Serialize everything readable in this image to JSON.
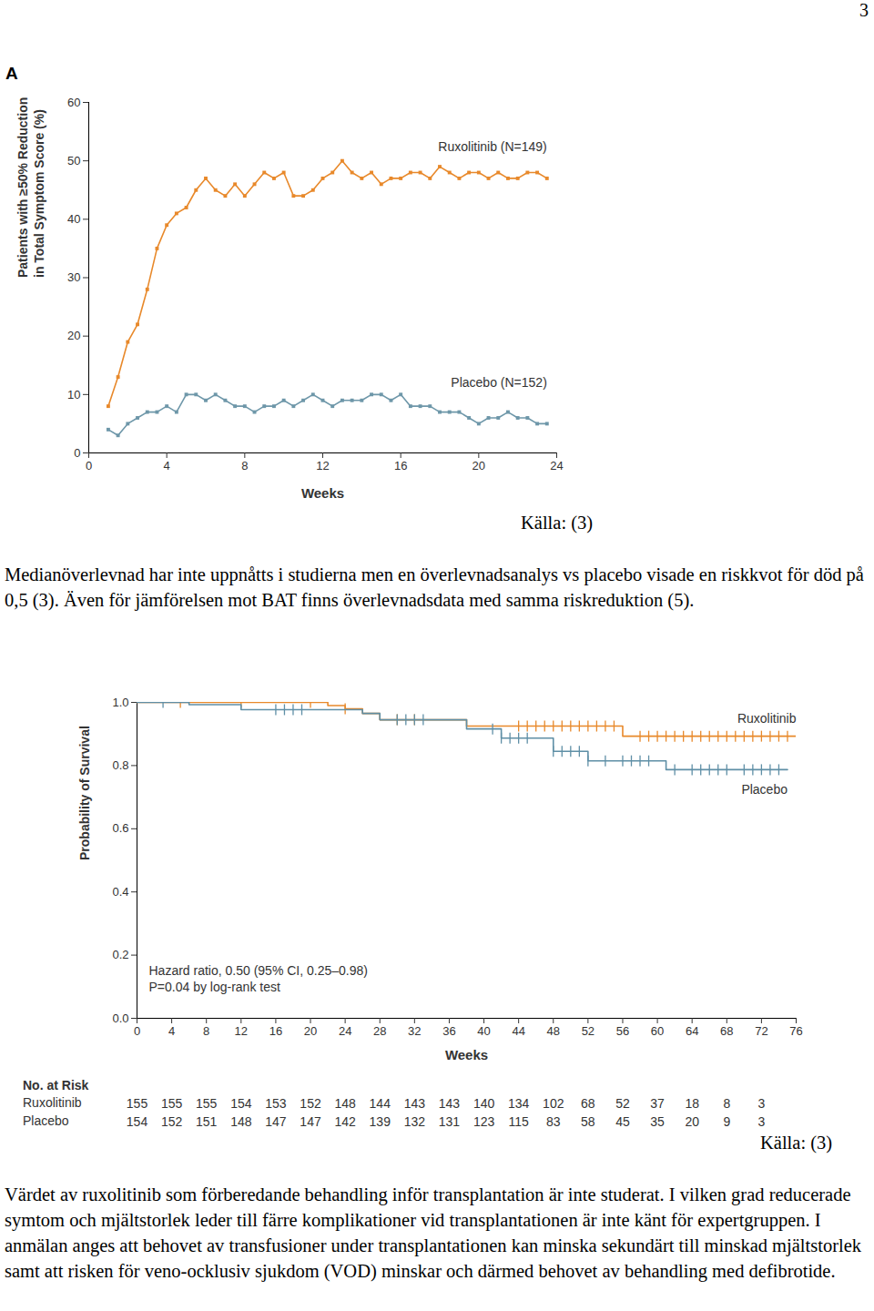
{
  "page_number": "3",
  "panel_label": "A",
  "chart_data": [
    {
      "type": "line",
      "marker": "square",
      "x_label": "Weeks",
      "y_label": [
        "Patients with ≥50% Reduction",
        "in Total Symptom Score (%)"
      ],
      "xlim": [
        0,
        24
      ],
      "xticks": [
        0,
        4,
        8,
        12,
        16,
        20,
        24
      ],
      "ylim": [
        0,
        60
      ],
      "yticks": [
        0,
        10,
        20,
        30,
        40,
        50,
        60
      ],
      "x": [
        1,
        1.5,
        2,
        2.5,
        3,
        3.5,
        4,
        4.5,
        5,
        5.5,
        6,
        6.5,
        7,
        7.5,
        8,
        8.5,
        9,
        9.5,
        10,
        10.5,
        11,
        11.5,
        12,
        12.5,
        13,
        13.5,
        14,
        14.5,
        15,
        15.5,
        16,
        16.5,
        17,
        17.5,
        18,
        18.5,
        19,
        19.5,
        20,
        20.5,
        21,
        21.5,
        22,
        22.5,
        23,
        23.5
      ],
      "series": [
        {
          "name": "Ruxolitinib (N=149)",
          "color": "#e8892b",
          "values": [
            8,
            13,
            19,
            22,
            28,
            35,
            39,
            41,
            42,
            45,
            47,
            45,
            44,
            46,
            44,
            46,
            48,
            47,
            48,
            44,
            44,
            45,
            47,
            48,
            50,
            48,
            47,
            48,
            46,
            47,
            47,
            48,
            48,
            47,
            49,
            48,
            47,
            48,
            48,
            47,
            48,
            47,
            47,
            48,
            48,
            47
          ]
        },
        {
          "name": "Placebo (N=152)",
          "color": "#6e97a9",
          "values": [
            4,
            3,
            5,
            6,
            7,
            7,
            8,
            7,
            10,
            10,
            9,
            10,
            9,
            8,
            8,
            7,
            8,
            8,
            9,
            8,
            9,
            10,
            9,
            8,
            9,
            9,
            9,
            10,
            10,
            9,
            10,
            8,
            8,
            8,
            7,
            7,
            7,
            6,
            5,
            6,
            6,
            7,
            6,
            6,
            5,
            5
          ]
        }
      ]
    },
    {
      "type": "step",
      "x_label": "Weeks",
      "y_label": "Probability of Survival",
      "xlim": [
        0,
        76
      ],
      "xticks": [
        0,
        4,
        8,
        12,
        16,
        20,
        24,
        28,
        32,
        36,
        40,
        44,
        48,
        52,
        56,
        60,
        64,
        68,
        72,
        76
      ],
      "ylim": [
        0,
        1
      ],
      "yticks": [
        {
          "value": 0,
          "label": "0.0"
        },
        0.2,
        0.4,
        0.6,
        0.8,
        {
          "value": 1,
          "label": "1.0"
        }
      ],
      "annotations": [
        "Hazard ratio, 0.50 (95% CI, 0.25–0.98)",
        "P=0.04 by log-rank test"
      ],
      "series": [
        {
          "name": "Ruxolitinib",
          "color": "#e8892b",
          "x": [
            0,
            22,
            24,
            26,
            28,
            38,
            56,
            76
          ],
          "values": [
            1,
            0.99,
            0.98,
            0.965,
            0.945,
            0.925,
            0.893,
            0.893
          ],
          "censored": [
            5,
            12,
            20,
            24,
            30,
            32,
            44,
            45,
            46,
            47,
            48,
            49,
            50,
            51,
            52,
            53,
            54,
            55,
            58,
            59,
            60,
            61,
            62,
            63,
            64,
            65,
            66,
            67,
            68,
            69,
            70,
            71,
            72,
            73,
            74,
            75
          ]
        },
        {
          "name": "Placebo",
          "color": "#5f8fa6",
          "x": [
            0,
            6,
            12,
            26,
            28,
            38,
            42,
            48,
            52,
            61,
            75
          ],
          "values": [
            1,
            0.993,
            0.977,
            0.965,
            0.945,
            0.916,
            0.887,
            0.845,
            0.815,
            0.787,
            0.787
          ],
          "censored": [
            3,
            16,
            17,
            18,
            19,
            30,
            31,
            32,
            33,
            41,
            42,
            43,
            44,
            45,
            48,
            49,
            50,
            51,
            52,
            54,
            56,
            57,
            58,
            59,
            62,
            64,
            65,
            66,
            67,
            68,
            70,
            71,
            72,
            73,
            74
          ]
        }
      ],
      "at_risk": {
        "title": "No. at Risk",
        "weeks": [
          0,
          4,
          8,
          12,
          16,
          20,
          24,
          28,
          32,
          36,
          40,
          44,
          48,
          52,
          56,
          60,
          64,
          68,
          72
        ],
        "rows": [
          {
            "name": "Ruxolitinib",
            "values": [
              155,
              155,
              155,
              154,
              153,
              152,
              148,
              144,
              143,
              143,
              140,
              134,
              102,
              68,
              52,
              37,
              18,
              8,
              3
            ]
          },
          {
            "name": "Placebo",
            "values": [
              154,
              152,
              151,
              148,
              147,
              147,
              142,
              139,
              132,
              131,
              123,
              115,
              83,
              58,
              45,
              35,
              20,
              9,
              3
            ]
          }
        ]
      }
    }
  ],
  "sources": [
    "Källa: (3)",
    "Källa: (3)"
  ],
  "paragraphs": [
    "Medianöverlevnad har inte uppnåtts i studierna men en överlevnadsanalys vs placebo visade en riskkvot för död på 0,5  (3). Även för jämförelsen mot BAT finns överlevnadsdata med samma riskreduktion (5).",
    "Värdet av ruxolitinib som förberedande behandling inför transplantation är inte studerat. I vilken grad reducerade symtom och mjältstorlek leder till färre komplikationer vid transplantationen är inte känt för expertgruppen. I anmälan anges att behovet av transfusioner under transplantationen kan minska sekundärt till minskad mjältstorlek samt att risken för veno-ocklusiv sjukdom (VOD) minskar och därmed behovet av behandling med defibrotide."
  ]
}
